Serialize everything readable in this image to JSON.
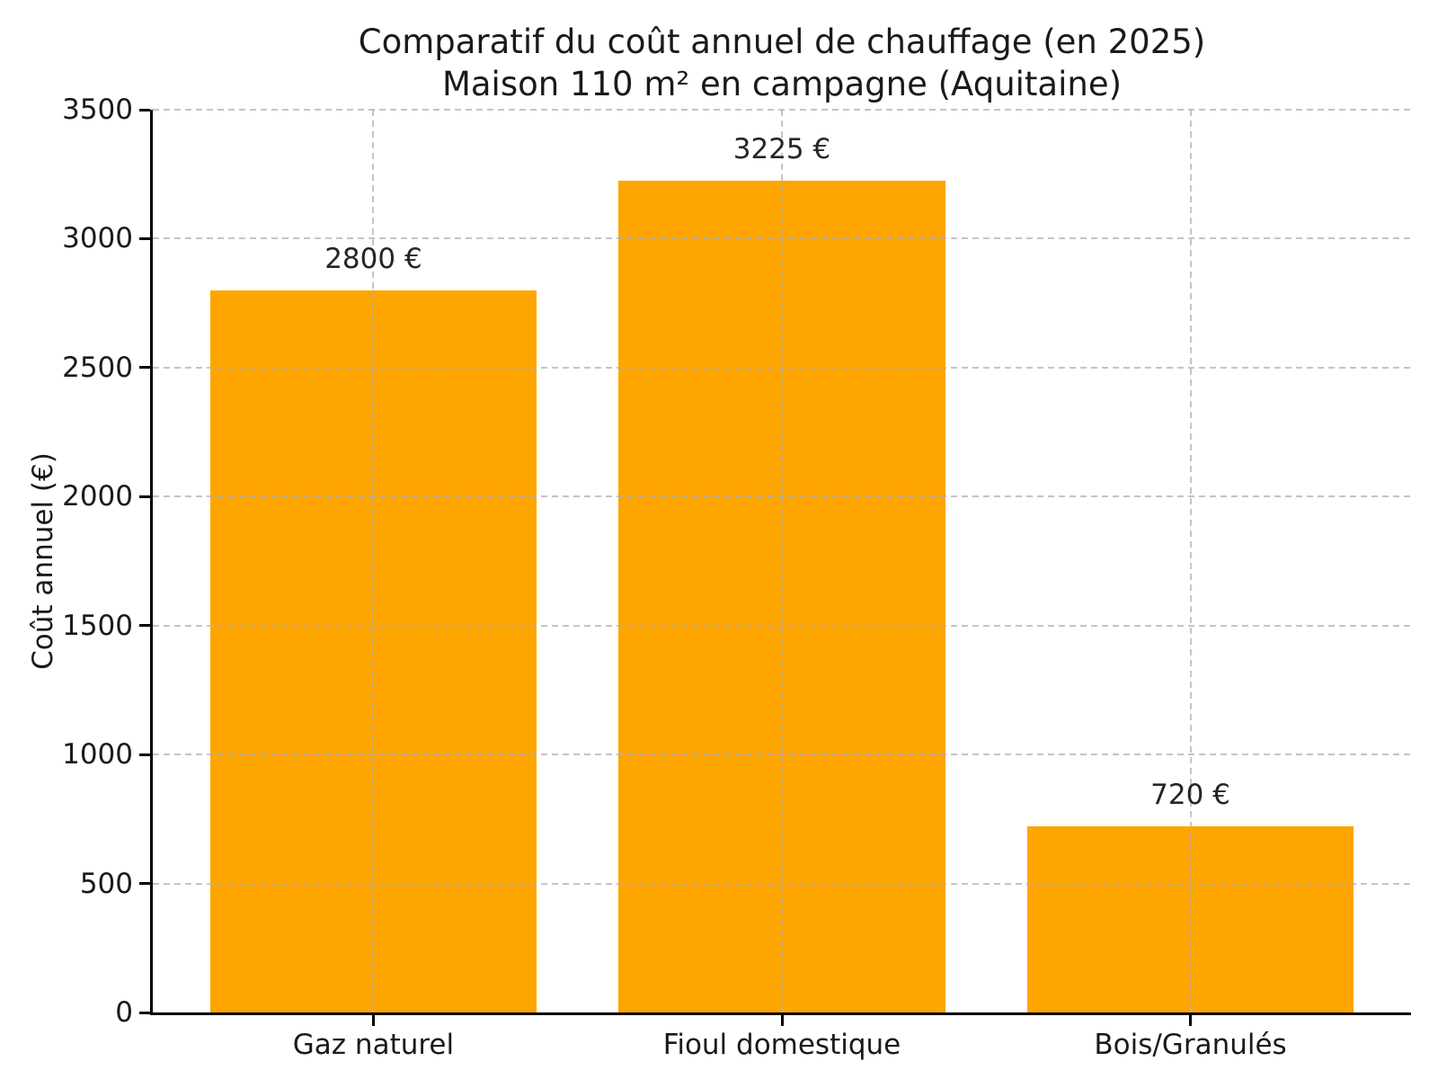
{
  "chart_data": {
    "type": "bar",
    "title_lines": [
      "Comparatif du coût annuel de chauffage (en 2025)",
      "Maison 110 m² en campagne (Aquitaine)"
    ],
    "categories": [
      "Gaz naturel",
      "Fioul domestique",
      "Bois/Granulés"
    ],
    "values": [
      2800,
      3225,
      720
    ],
    "bar_labels": [
      "2800 €",
      "3225 €",
      "720 €"
    ],
    "ylabel": "Coût annuel (€)",
    "xlabel": "",
    "ylim": [
      0,
      3500
    ],
    "yticks": [
      0,
      500,
      1000,
      1500,
      2000,
      2500,
      3000,
      3500
    ],
    "grid": "dashed, horizontal at y ticks and vertical at bar centers, drawn over bars",
    "legend_position": "none",
    "colors": {
      "bar": "#FFA500",
      "grid": "#b0b0b0",
      "text": "#1a1a1a",
      "spine": "#000000",
      "background": "#ffffff"
    }
  }
}
